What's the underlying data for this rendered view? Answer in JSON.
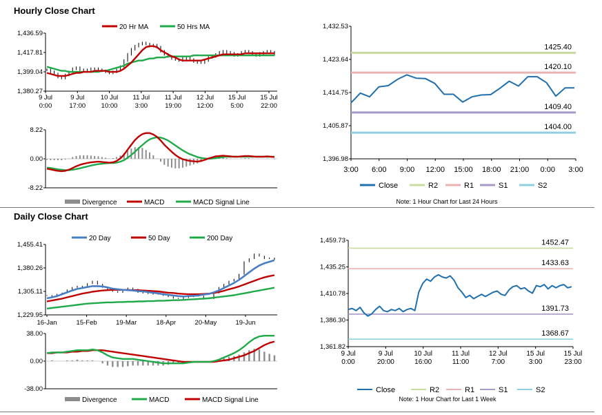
{
  "sections": {
    "hourly_title": "Hourly Close Chart",
    "daily_title": "Daily Close Chart"
  },
  "colors": {
    "red": "#c00000",
    "green": "#1faa4a",
    "blue": "#4a7ec4",
    "navy": "#1f6fae",
    "r2": "#c8dca0",
    "r1": "#ebb2b2",
    "s1": "#a89ac6",
    "s2": "#8fd0e0",
    "gray": "#8c8c8c",
    "black": "#000000"
  },
  "chart_data": [
    {
      "id": "hourly_price",
      "type": "line",
      "legend": [
        "20 Hr MA",
        "50 Hrs MA"
      ],
      "y_ticks": [
        "1,436.59",
        "1,417.81",
        "1,399.04",
        "1,380.27"
      ],
      "ylim": [
        1380.27,
        1436.59
      ],
      "x_ticks": [
        [
          "9 Jul",
          "0:00"
        ],
        [
          "9 Jul",
          "17:00"
        ],
        [
          "10 Jul",
          "10:00"
        ],
        [
          "11 Jul",
          "3:00"
        ],
        [
          "11 Jul",
          "19:00"
        ],
        [
          "12 Jul",
          "12:00"
        ],
        [
          "15 Jul",
          "5:00"
        ],
        [
          "15 Jul",
          "22:00"
        ]
      ],
      "close": [
        1401,
        1399,
        1397,
        1394,
        1393,
        1396,
        1399,
        1402,
        1403,
        1401,
        1400,
        1401,
        1402,
        1402,
        1401,
        1400,
        1399,
        1398,
        1399,
        1401,
        1404,
        1410,
        1416,
        1421,
        1424,
        1426,
        1427,
        1426,
        1424,
        1425,
        1423,
        1419,
        1416,
        1414,
        1412,
        1411,
        1410,
        1412,
        1413,
        1411,
        1409,
        1408,
        1408,
        1410,
        1413,
        1414,
        1416,
        1418,
        1419,
        1418,
        1417,
        1415,
        1416,
        1418,
        1419,
        1418,
        1416,
        1415,
        1417,
        1418,
        1419,
        1418,
        1416
      ],
      "ma20": [
        1398,
        1397,
        1396,
        1395,
        1395,
        1395,
        1396,
        1397,
        1398,
        1398,
        1399,
        1399,
        1399,
        1400,
        1400,
        1400,
        1400,
        1399,
        1399,
        1399,
        1400,
        1402,
        1405,
        1408,
        1412,
        1416,
        1420,
        1423,
        1424,
        1424,
        1423,
        1420,
        1418,
        1416,
        1414,
        1413,
        1411,
        1410,
        1410,
        1410,
        1410,
        1410,
        1410,
        1411,
        1412,
        1413,
        1414,
        1415,
        1416,
        1416,
        1416,
        1416,
        1416,
        1416,
        1417,
        1417,
        1417,
        1417,
        1417,
        1417,
        1417,
        1417,
        1417
      ],
      "ma50": [
        1404,
        1403,
        1402,
        1401,
        1400,
        1400,
        1399,
        1399,
        1399,
        1399,
        1399,
        1399,
        1399,
        1399,
        1399,
        1400,
        1400,
        1401,
        1402,
        1403,
        1404,
        1405,
        1407,
        1408,
        1409,
        1410,
        1410,
        1411,
        1412,
        1412,
        1413,
        1413,
        1413,
        1414,
        1414,
        1414,
        1414,
        1414,
        1414,
        1414,
        1415,
        1415,
        1415,
        1415,
        1415,
        1415,
        1415,
        1415,
        1415,
        1415,
        1415,
        1415,
        1415,
        1415,
        1415,
        1415,
        1415,
        1415,
        1415,
        1415,
        1415,
        1415,
        1415
      ]
    },
    {
      "id": "hourly_macd",
      "type": "line",
      "legend": [
        "Divergence",
        "MACD",
        "MACD Signal Line"
      ],
      "y_ticks": [
        "8.22",
        "0.00",
        "-8.22"
      ],
      "ylim": [
        -8.22,
        8.22
      ],
      "macd": [
        -2.8,
        -3.0,
        -3.2,
        -3.4,
        -3.5,
        -3.4,
        -3.1,
        -2.6,
        -2.1,
        -1.7,
        -1.4,
        -1.2,
        -1.0,
        -0.9,
        -0.8,
        -0.9,
        -1.0,
        -1.1,
        -1.0,
        -0.6,
        0.1,
        1.2,
        2.6,
        4.0,
        5.3,
        6.3,
        7.0,
        7.3,
        7.3,
        6.9,
        6.2,
        5.2,
        4.0,
        3.0,
        2.0,
        1.1,
        0.4,
        -0.1,
        -0.4,
        -0.6,
        -0.7,
        -0.8,
        -0.6,
        -0.3,
        0.1,
        0.4,
        0.7,
        0.8,
        0.9,
        0.8,
        0.7,
        0.6,
        0.6,
        0.7,
        0.8,
        0.8,
        0.7,
        0.6,
        0.6,
        0.6,
        0.7,
        0.6,
        0.5
      ],
      "signal": [
        -2.5,
        -2.6,
        -2.8,
        -3.0,
        -3.1,
        -3.2,
        -3.2,
        -3.1,
        -2.9,
        -2.7,
        -2.4,
        -2.2,
        -1.9,
        -1.7,
        -1.5,
        -1.4,
        -1.3,
        -1.2,
        -1.2,
        -1.1,
        -0.8,
        -0.4,
        0.3,
        1.1,
        2.0,
        3.0,
        3.9,
        4.8,
        5.5,
        5.9,
        6.1,
        6.0,
        5.7,
        5.2,
        4.5,
        3.8,
        3.1,
        2.4,
        1.8,
        1.3,
        0.9,
        0.5,
        0.3,
        0.1,
        0.0,
        0.1,
        0.2,
        0.4,
        0.5,
        0.6,
        0.6,
        0.6,
        0.6,
        0.6,
        0.6,
        0.6,
        0.6,
        0.6,
        0.6,
        0.6,
        0.6,
        0.6,
        0.6
      ],
      "divergence": [
        -0.3,
        -0.4,
        -0.4,
        -0.4,
        -0.4,
        -0.2,
        0.1,
        0.5,
        0.8,
        1.0,
        1.0,
        1.0,
        0.9,
        0.8,
        0.7,
        0.5,
        0.3,
        0.1,
        0.2,
        0.5,
        0.9,
        1.6,
        2.3,
        2.9,
        3.3,
        3.3,
        3.1,
        2.5,
        1.8,
        1.0,
        0.1,
        -0.8,
        -1.7,
        -2.2,
        -2.5,
        -2.7,
        -2.7,
        -2.5,
        -2.2,
        -1.9,
        -1.6,
        -1.3,
        -0.9,
        -0.4,
        0.1,
        0.3,
        0.5,
        0.4,
        0.4,
        0.2,
        0.1,
        0.0,
        0.0,
        0.1,
        0.2,
        0.2,
        0.1,
        0.0,
        0.0,
        0.0,
        0.1,
        0.0,
        -0.1
      ]
    },
    {
      "id": "hourly_pivot",
      "type": "line",
      "legend": [
        "Close",
        "R2",
        "R1",
        "S1",
        "S2"
      ],
      "y_ticks": [
        "1,432.53",
        "1,423.64",
        "1,414.75",
        "1,405.87",
        "1,396.98"
      ],
      "ylim": [
        1396.98,
        1432.53
      ],
      "x_ticks": [
        "3:00",
        "6:00",
        "9:00",
        "12:00",
        "15:00",
        "18:00",
        "21:00",
        "0:00",
        "3:00"
      ],
      "levels": [
        {
          "name": "R2",
          "value": 1425.4,
          "label": "1425.40"
        },
        {
          "name": "R1",
          "value": 1420.1,
          "label": "1420.10"
        },
        {
          "name": "S1",
          "value": 1409.4,
          "label": "1409.40"
        },
        {
          "name": "S2",
          "value": 1404.0,
          "label": "1404.00"
        }
      ],
      "close": [
        1412.0,
        1414.6,
        1413.6,
        1416.3,
        1416.6,
        1418.3,
        1419.5,
        1418.6,
        1418.5,
        1417.2,
        1414.3,
        1414.3,
        1412.2,
        1413.6,
        1414.1,
        1414.2,
        1415.9,
        1417.8,
        1416.5,
        1419.0,
        1419.0,
        1417.4,
        1413.8,
        1416.0,
        1416.0
      ],
      "note": "Note: 1 Hour Chart for Last 24 Hours"
    },
    {
      "id": "daily_price",
      "type": "line",
      "legend": [
        "20 Day",
        "50 Day",
        "200 Day"
      ],
      "y_ticks": [
        "1,455.41",
        "1,380.26",
        "1,305.11",
        "1,229.95"
      ],
      "ylim": [
        1229.95,
        1455.41
      ],
      "x_ticks": [
        "16-Jan",
        "15-Feb",
        "19-Mar",
        "18-Apr",
        "20-May",
        "19-Jun"
      ],
      "close": [
        1292,
        1288,
        1296,
        1300,
        1310,
        1318,
        1322,
        1318,
        1330,
        1338,
        1328,
        1318,
        1312,
        1305,
        1302,
        1308,
        1316,
        1312,
        1302,
        1300,
        1298,
        1296,
        1298,
        1292,
        1288,
        1283,
        1282,
        1285,
        1288,
        1295,
        1290,
        1285,
        1282,
        1300,
        1318,
        1328,
        1338,
        1344,
        1360,
        1400,
        1410,
        1425,
        1418,
        1410,
        1412,
        1408
      ],
      "ma20": [
        1283,
        1286,
        1290,
        1296,
        1302,
        1308,
        1313,
        1316,
        1319,
        1322,
        1322,
        1321,
        1318,
        1314,
        1312,
        1310,
        1309,
        1308,
        1306,
        1305,
        1303,
        1301,
        1299,
        1296,
        1294,
        1292,
        1290,
        1289,
        1290,
        1291,
        1292,
        1295,
        1297,
        1302,
        1308,
        1316,
        1324,
        1332,
        1342,
        1354,
        1366,
        1378,
        1388,
        1395,
        1400,
        1405
      ],
      "ma50": [
        1273,
        1276,
        1279,
        1282,
        1286,
        1290,
        1294,
        1298,
        1301,
        1304,
        1306,
        1308,
        1309,
        1310,
        1310,
        1310,
        1310,
        1309,
        1309,
        1308,
        1307,
        1306,
        1305,
        1303,
        1301,
        1300,
        1298,
        1297,
        1296,
        1296,
        1296,
        1297,
        1298,
        1300,
        1303,
        1307,
        1312,
        1316,
        1321,
        1327,
        1333,
        1339,
        1345,
        1350,
        1354,
        1357
      ],
      "ma200": [
        1250,
        1252,
        1254,
        1256,
        1258,
        1260,
        1262,
        1264,
        1266,
        1267,
        1268,
        1269,
        1270,
        1270,
        1271,
        1271,
        1272,
        1272,
        1273,
        1273,
        1274,
        1274,
        1275,
        1275,
        1276,
        1277,
        1277,
        1278,
        1279,
        1280,
        1281,
        1282,
        1283,
        1285,
        1287,
        1289,
        1291,
        1293,
        1296,
        1299,
        1302,
        1305,
        1308,
        1311,
        1314,
        1317
      ]
    },
    {
      "id": "daily_macd",
      "type": "line",
      "legend": [
        "Divergence",
        "MACD",
        "MACD Signal Line"
      ],
      "y_ticks": [
        "38.00",
        "0.00",
        "-38.00"
      ],
      "ylim": [
        -38.0,
        38.0
      ],
      "macd": [
        11,
        12,
        12,
        12,
        13,
        14,
        15,
        15,
        15,
        16,
        15,
        12,
        8,
        5,
        4,
        3,
        3,
        3,
        2,
        1,
        0,
        -1,
        -2,
        -3,
        -3,
        -3,
        -3,
        -3,
        -2,
        -1,
        -1,
        -1,
        -1,
        0,
        2,
        5,
        8,
        11,
        15,
        20,
        26,
        31,
        34,
        35,
        35,
        35
      ],
      "signal": [
        11,
        11,
        12,
        12,
        12,
        13,
        13,
        14,
        14,
        15,
        15,
        15,
        14,
        13,
        12,
        11,
        10,
        9,
        8,
        7,
        6,
        5,
        4,
        3,
        2,
        1,
        0,
        -1,
        -1,
        -1,
        -1,
        -1,
        -1,
        -1,
        0,
        1,
        2,
        4,
        6,
        8,
        11,
        14,
        18,
        22,
        25,
        27
      ],
      "divergence": [
        0,
        1,
        0,
        0,
        1,
        1,
        2,
        1,
        1,
        1,
        0,
        -3,
        -6,
        -8,
        -8,
        -8,
        -7,
        -6,
        -6,
        -6,
        -6,
        -6,
        -6,
        -6,
        -5,
        -4,
        -3,
        -2,
        -1,
        0,
        0,
        0,
        0,
        1,
        2,
        4,
        6,
        7,
        9,
        12,
        15,
        17,
        16,
        13,
        10,
        8
      ]
    },
    {
      "id": "daily_pivot",
      "type": "line",
      "legend": [
        "Close",
        "R2",
        "R1",
        "S1",
        "S2"
      ],
      "y_ticks": [
        "1,459.73",
        "1,435.25",
        "1,410.78",
        "1,386.30",
        "1,361.82"
      ],
      "ylim": [
        1361.82,
        1459.73
      ],
      "x_ticks": [
        [
          "9 Jul",
          "0:00"
        ],
        [
          "9 Jul",
          "20:00"
        ],
        [
          "10 Jul",
          "16:00"
        ],
        [
          "11 Jul",
          "11:00"
        ],
        [
          "12 Jul",
          "7:00"
        ],
        [
          "15 Jul",
          "3:00"
        ],
        [
          "15 Jul",
          "23:00"
        ]
      ],
      "levels": [
        {
          "name": "R2",
          "value": 1452.47,
          "label": "1452.47"
        },
        {
          "name": "R1",
          "value": 1433.63,
          "label": "1433.63"
        },
        {
          "name": "S1",
          "value": 1391.73,
          "label": "1391.73"
        },
        {
          "name": "S2",
          "value": 1368.67,
          "label": "1368.67"
        }
      ],
      "close": [
        1396,
        1397,
        1395,
        1398,
        1393,
        1390,
        1392,
        1396,
        1399,
        1395,
        1394,
        1396,
        1395,
        1397,
        1394,
        1396,
        1397,
        1395,
        1412,
        1420,
        1424,
        1422,
        1426,
        1428,
        1426,
        1425,
        1427,
        1423,
        1416,
        1412,
        1407,
        1409,
        1406,
        1408,
        1410,
        1408,
        1410,
        1412,
        1413,
        1410,
        1409,
        1414,
        1417,
        1418,
        1415,
        1416,
        1413,
        1411,
        1418,
        1417,
        1419,
        1415,
        1418,
        1416,
        1418,
        1419,
        1416,
        1417
      ],
      "note": "Note: 1 Hour Chart for Last 1 Week"
    }
  ]
}
